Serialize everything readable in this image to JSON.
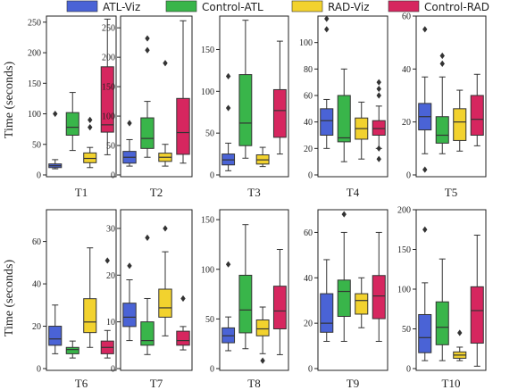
{
  "legend": [
    {
      "label": "ATL-Viz",
      "color": "#4a63d6"
    },
    {
      "label": "Control-ATL",
      "color": "#39b54a"
    },
    {
      "label": "RAD-Viz",
      "color": "#f2d22e"
    },
    {
      "label": "Control-RAD",
      "color": "#d6265f"
    }
  ],
  "ylabel": "Time (seconds)",
  "chart_data": [
    {
      "type": "box",
      "category": "T1",
      "ylim": [
        0,
        260
      ],
      "yticks": [
        0,
        50,
        100,
        150,
        200,
        250
      ],
      "boxes": [
        {
          "series": "ATL-Viz",
          "whisker_low": 10,
          "q1": 12,
          "median": 15,
          "q3": 18,
          "whisker_high": 25,
          "outliers": [
            100
          ]
        },
        {
          "series": "Control-ATL",
          "whisker_low": 40,
          "q1": 65,
          "median": 78,
          "q3": 102,
          "whisker_high": 135,
          "outliers": []
        },
        {
          "series": "RAD-Viz",
          "whisker_low": 12,
          "q1": 20,
          "median": 27,
          "q3": 36,
          "whisker_high": 45,
          "outliers": [
            90,
            78
          ]
        },
        {
          "series": "Control-RAD",
          "whisker_low": 33,
          "q1": 70,
          "median": 82,
          "q3": 177,
          "whisker_high": 255,
          "outliers": []
        }
      ]
    },
    {
      "type": "box",
      "category": "T2",
      "ylim": [
        0,
        270
      ],
      "yticks": [
        0,
        50,
        100,
        150,
        200,
        250
      ],
      "boxes": [
        {
          "series": "ATL-Viz",
          "whisker_low": 15,
          "q1": 20,
          "median": 30,
          "q3": 40,
          "whisker_high": 60,
          "outliers": [
            88
          ]
        },
        {
          "series": "Control-ATL",
          "whisker_low": 30,
          "q1": 45,
          "median": 62,
          "q3": 97,
          "whisker_high": 125,
          "outliers": [
            232,
            212
          ]
        },
        {
          "series": "RAD-Viz",
          "whisker_low": 15,
          "q1": 23,
          "median": 30,
          "q3": 37,
          "whisker_high": 52,
          "outliers": [
            190
          ]
        },
        {
          "series": "Control-RAD",
          "whisker_low": 20,
          "q1": 35,
          "median": 72,
          "q3": 130,
          "whisker_high": 262,
          "outliers": []
        }
      ]
    },
    {
      "type": "box",
      "category": "T3",
      "ylim": [
        0,
        190
      ],
      "yticks": [
        0,
        50,
        100,
        150
      ],
      "boxes": [
        {
          "series": "ATL-Viz",
          "whisker_low": 5,
          "q1": 12,
          "median": 18,
          "q3": 25,
          "whisker_high": 38,
          "outliers": [
            80,
            118
          ]
        },
        {
          "series": "Control-ATL",
          "whisker_low": 20,
          "q1": 35,
          "median": 62,
          "q3": 120,
          "whisker_high": 185,
          "outliers": []
        },
        {
          "series": "RAD-Viz",
          "whisker_low": 10,
          "q1": 13,
          "median": 18,
          "q3": 24,
          "whisker_high": 33,
          "outliers": []
        },
        {
          "series": "Control-RAD",
          "whisker_low": 25,
          "q1": 45,
          "median": 77,
          "q3": 102,
          "whisker_high": 160,
          "outliers": []
        }
      ]
    },
    {
      "type": "box",
      "category": "T4",
      "ylim": [
        0,
        120
      ],
      "yticks": [
        0,
        20,
        40,
        60,
        80,
        100
      ],
      "boxes": [
        {
          "series": "ATL-Viz",
          "whisker_low": 20,
          "q1": 30,
          "median": 41,
          "q3": 50,
          "whisker_high": 57,
          "outliers": [
            110,
            118
          ]
        },
        {
          "series": "Control-ATL",
          "whisker_low": 10,
          "q1": 25,
          "median": 28,
          "q3": 60,
          "whisker_high": 80,
          "outliers": []
        },
        {
          "series": "RAD-Viz",
          "whisker_low": 12,
          "q1": 27,
          "median": 35,
          "q3": 43,
          "whisker_high": 55,
          "outliers": []
        },
        {
          "series": "Control-RAD",
          "whisker_low": 20,
          "q1": 30,
          "median": 35,
          "q3": 41,
          "whisker_high": 52,
          "outliers": [
            70,
            65,
            60,
            20,
            12
          ]
        }
      ]
    },
    {
      "type": "box",
      "category": "T5",
      "ylim": [
        0,
        60
      ],
      "yticks": [
        0,
        20,
        40,
        60
      ],
      "boxes": [
        {
          "series": "ATL-Viz",
          "whisker_low": 8,
          "q1": 17,
          "median": 22,
          "q3": 27,
          "whisker_high": 37,
          "outliers": [
            2,
            55
          ]
        },
        {
          "series": "Control-ATL",
          "whisker_low": 8,
          "q1": 12,
          "median": 15,
          "q3": 22,
          "whisker_high": 37,
          "outliers": [
            45,
            42
          ]
        },
        {
          "series": "RAD-Viz",
          "whisker_low": 9,
          "q1": 13,
          "median": 20,
          "q3": 25,
          "whisker_high": 32,
          "outliers": []
        },
        {
          "series": "Control-RAD",
          "whisker_low": 11,
          "q1": 15,
          "median": 21,
          "q3": 30,
          "whisker_high": 38,
          "outliers": []
        }
      ]
    },
    {
      "type": "box",
      "category": "T6",
      "ylim": [
        0,
        75
      ],
      "yticks": [
        0,
        20,
        40,
        60
      ],
      "boxes": [
        {
          "series": "ATL-Viz",
          "whisker_low": 7,
          "q1": 11,
          "median": 14,
          "q3": 20,
          "whisker_high": 30,
          "outliers": []
        },
        {
          "series": "Control-ATL",
          "whisker_low": 5,
          "q1": 7,
          "median": 9,
          "q3": 10,
          "whisker_high": 13,
          "outliers": []
        },
        {
          "series": "RAD-Viz",
          "whisker_low": 10,
          "q1": 17,
          "median": 22,
          "q3": 33,
          "whisker_high": 57,
          "outliers": []
        },
        {
          "series": "Control-RAD",
          "whisker_low": 5,
          "q1": 7,
          "median": 10,
          "q3": 13,
          "whisker_high": 18,
          "outliers": [
            51
          ]
        }
      ]
    },
    {
      "type": "box",
      "category": "T7",
      "ylim": [
        0,
        34
      ],
      "yticks": [
        0,
        10,
        20,
        30
      ],
      "boxes": [
        {
          "series": "ATL-Viz",
          "whisker_low": 6,
          "q1": 9,
          "median": 11,
          "q3": 14,
          "whisker_high": 19,
          "outliers": [
            22
          ]
        },
        {
          "series": "Control-ATL",
          "whisker_low": 3,
          "q1": 5,
          "median": 6,
          "q3": 10,
          "whisker_high": 15,
          "outliers": [
            28
          ]
        },
        {
          "series": "RAD-Viz",
          "whisker_low": 7,
          "q1": 11,
          "median": 13,
          "q3": 17,
          "whisker_high": 25,
          "outliers": [
            30
          ]
        },
        {
          "series": "Control-RAD",
          "whisker_low": 4,
          "q1": 5,
          "median": 6,
          "q3": 8,
          "whisker_high": 9,
          "outliers": [
            15
          ]
        }
      ]
    },
    {
      "type": "box",
      "category": "T8",
      "ylim": [
        0,
        160
      ],
      "yticks": [
        0,
        50,
        100,
        150
      ],
      "boxes": [
        {
          "series": "ATL-Viz",
          "whisker_low": 18,
          "q1": 26,
          "median": 33,
          "q3": 41,
          "whisker_high": 52,
          "outliers": [
            105
          ]
        },
        {
          "series": "Control-ATL",
          "whisker_low": 20,
          "q1": 36,
          "median": 59,
          "q3": 94,
          "whisker_high": 145,
          "outliers": []
        },
        {
          "series": "RAD-Viz",
          "whisker_low": 15,
          "q1": 33,
          "median": 40,
          "q3": 49,
          "whisker_high": 62,
          "outliers": [
            8
          ]
        },
        {
          "series": "Control-RAD",
          "whisker_low": 14,
          "q1": 40,
          "median": 58,
          "q3": 83,
          "whisker_high": 120,
          "outliers": []
        }
      ]
    },
    {
      "type": "box",
      "category": "T9",
      "ylim": [
        0,
        70
      ],
      "yticks": [
        0,
        20,
        40,
        60
      ],
      "boxes": [
        {
          "series": "ATL-Viz",
          "whisker_low": 12,
          "q1": 16,
          "median": 20,
          "q3": 33,
          "whisker_high": 48,
          "outliers": []
        },
        {
          "series": "Control-ATL",
          "whisker_low": 12,
          "q1": 23,
          "median": 34,
          "q3": 39,
          "whisker_high": 60,
          "outliers": [
            68
          ]
        },
        {
          "series": "RAD-Viz",
          "whisker_low": 18,
          "q1": 24,
          "median": 30,
          "q3": 33,
          "whisker_high": 40,
          "outliers": []
        },
        {
          "series": "Control-RAD",
          "whisker_low": 12,
          "q1": 22,
          "median": 32,
          "q3": 41,
          "whisker_high": 60,
          "outliers": []
        }
      ]
    },
    {
      "type": "box",
      "category": "T10",
      "ylim": [
        0,
        200
      ],
      "yticks": [
        0,
        50,
        100,
        150,
        200
      ],
      "boxes": [
        {
          "series": "ATL-Viz",
          "whisker_low": 10,
          "q1": 20,
          "median": 39,
          "q3": 68,
          "whisker_high": 108,
          "outliers": [
            175
          ]
        },
        {
          "series": "Control-ATL",
          "whisker_low": 10,
          "q1": 30,
          "median": 52,
          "q3": 84,
          "whisker_high": 138,
          "outliers": []
        },
        {
          "series": "RAD-Viz",
          "whisker_low": 10,
          "q1": 13,
          "median": 17,
          "q3": 21,
          "whisker_high": 27,
          "outliers": [
            45
          ]
        },
        {
          "series": "Control-RAD",
          "whisker_low": 3,
          "q1": 32,
          "median": 73,
          "q3": 103,
          "whisker_high": 168,
          "outliers": []
        }
      ]
    }
  ]
}
